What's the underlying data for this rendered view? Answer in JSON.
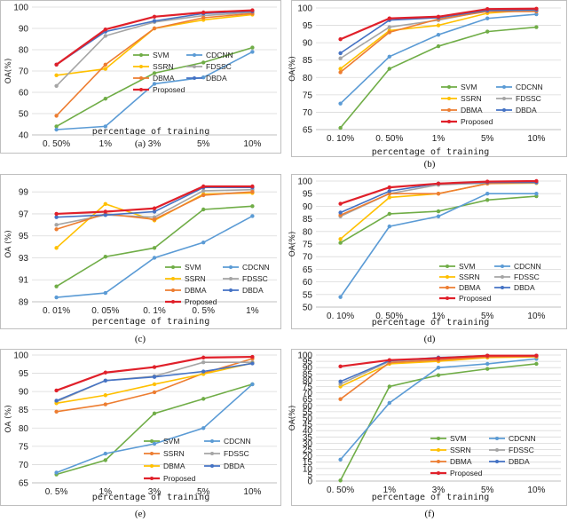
{
  "chart_data": [
    {
      "type": "line",
      "caption": "(a)",
      "xlabel": "percentage of training",
      "ylabel": "OA(%)",
      "categories": [
        "0. 50%",
        "1%",
        "3%",
        "5%",
        "10%"
      ],
      "yticks": [
        "40",
        "50",
        "60",
        "70",
        "80",
        "90",
        "100"
      ],
      "ylim": [
        40,
        100
      ],
      "series": [
        {
          "name": "SVM",
          "color": "#70ad47",
          "values": [
            44,
            57,
            69,
            74,
            81
          ]
        },
        {
          "name": "CDCNN",
          "color": "#5b9bd5",
          "values": [
            42.5,
            44,
            64,
            67,
            79
          ]
        },
        {
          "name": "SSRN",
          "color": "#ffc000",
          "values": [
            68,
            71,
            90,
            94,
            96.5
          ]
        },
        {
          "name": "FDSSC",
          "color": "#a5a5a5",
          "values": [
            63,
            86.5,
            93,
            96,
            97.5
          ]
        },
        {
          "name": "DBMA",
          "color": "#ed7d31",
          "values": [
            49,
            73,
            90,
            95,
            97
          ]
        },
        {
          "name": "DBDA",
          "color": "#4472c4",
          "values": [
            73,
            88.5,
            93.5,
            97,
            98
          ]
        },
        {
          "name": "Proposed",
          "color": "#e0202a",
          "values": [
            73,
            89.5,
            95.5,
            97.5,
            98.5
          ]
        }
      ]
    },
    {
      "type": "line",
      "caption": "(b)",
      "xlabel": "percentage of training",
      "ylabel": "OA(%)",
      "categories": [
        "0. 10%",
        "0. 50%",
        "1%",
        "5%",
        "10%"
      ],
      "yticks": [
        "65",
        "70",
        "75",
        "80",
        "85",
        "90",
        "95",
        "100"
      ],
      "ylim": [
        65,
        100
      ],
      "series": [
        {
          "name": "SVM",
          "color": "#70ad47",
          "values": [
            65.5,
            82.5,
            89,
            93.2,
            94.5
          ]
        },
        {
          "name": "CDCNN",
          "color": "#5b9bd5",
          "values": [
            72.5,
            86,
            92.3,
            97,
            98.2
          ]
        },
        {
          "name": "SSRN",
          "color": "#ffc000",
          "values": [
            82.5,
            93.5,
            95,
            98.5,
            99.5
          ]
        },
        {
          "name": "FDSSC",
          "color": "#a5a5a5",
          "values": [
            85.5,
            94.5,
            96.5,
            99.2,
            99.3
          ]
        },
        {
          "name": "DBMA",
          "color": "#ed7d31",
          "values": [
            81.5,
            93,
            96.8,
            99,
            99
          ]
        },
        {
          "name": "DBDA",
          "color": "#4472c4",
          "values": [
            87,
            96.5,
            97.2,
            99.3,
            99.4
          ]
        },
        {
          "name": "Proposed",
          "color": "#e0202a",
          "values": [
            91,
            97,
            97.5,
            99.7,
            99.8
          ]
        }
      ]
    },
    {
      "type": "line",
      "caption": "(c)",
      "xlabel": "percentage of training",
      "ylabel": "OA (%)",
      "categories": [
        "0. 01%",
        "0. 05%",
        "0. 1%",
        "0. 5%",
        "1%"
      ],
      "yticks": [
        "89",
        "91",
        "93",
        "95",
        "97",
        "99"
      ],
      "ylim": [
        89,
        99.5
      ],
      "series": [
        {
          "name": "SVM",
          "color": "#70ad47",
          "values": [
            90.4,
            93.1,
            93.9,
            97.4,
            97.7
          ]
        },
        {
          "name": "CDCNN",
          "color": "#5b9bd5",
          "values": [
            89.4,
            89.8,
            93,
            94.4,
            96.8
          ]
        },
        {
          "name": "SSRN",
          "color": "#ffc000",
          "values": [
            93.9,
            97.9,
            96.4,
            98.8,
            98.9
          ]
        },
        {
          "name": "FDSSC",
          "color": "#a5a5a5",
          "values": [
            96,
            96.9,
            96.7,
            99.1,
            99.2
          ]
        },
        {
          "name": "DBMA",
          "color": "#ed7d31",
          "values": [
            95.6,
            97,
            96.5,
            98.7,
            99
          ]
        },
        {
          "name": "DBDA",
          "color": "#4472c4",
          "values": [
            96.7,
            96.9,
            97.2,
            99.4,
            99.4
          ]
        },
        {
          "name": "Proposed",
          "color": "#e0202a",
          "values": [
            97,
            97.2,
            97.5,
            99.5,
            99.5
          ]
        }
      ]
    },
    {
      "type": "line",
      "caption": "(d)",
      "xlabel": "percentage of training",
      "ylabel": "OA(%)",
      "categories": [
        "0. 10%",
        "0. 50%",
        "1%",
        "5%",
        "10%"
      ],
      "yticks": [
        "50",
        "55",
        "60",
        "65",
        "70",
        "75",
        "80",
        "85",
        "90",
        "95",
        "100"
      ],
      "ylim": [
        50,
        100
      ],
      "series": [
        {
          "name": "SVM",
          "color": "#70ad47",
          "values": [
            75.5,
            87,
            88,
            92.5,
            94
          ]
        },
        {
          "name": "CDCNN",
          "color": "#5b9bd5",
          "values": [
            54,
            82,
            86,
            95,
            95
          ]
        },
        {
          "name": "SSRN",
          "color": "#ffc000",
          "values": [
            77,
            93.5,
            95,
            99,
            99.2
          ]
        },
        {
          "name": "FDSSC",
          "color": "#a5a5a5",
          "values": [
            86,
            95,
            98.5,
            99.2,
            99.3
          ]
        },
        {
          "name": "DBMA",
          "color": "#ed7d31",
          "values": [
            86.5,
            95,
            95,
            99,
            99.5
          ]
        },
        {
          "name": "DBDA",
          "color": "#4472c4",
          "values": [
            87.5,
            96,
            99,
            99.5,
            99.5
          ]
        },
        {
          "name": "Proposed",
          "color": "#e0202a",
          "values": [
            91,
            97.5,
            99,
            99.8,
            100
          ]
        }
      ]
    },
    {
      "type": "line",
      "caption": "(e)",
      "xlabel": "percentage of training",
      "ylabel": "OA (%)",
      "categories": [
        "0. 5%",
        "1%",
        "3%",
        "5%",
        "10%"
      ],
      "yticks": [
        "65",
        "70",
        "75",
        "80",
        "85",
        "90",
        "95",
        "100"
      ],
      "ylim": [
        65,
        100
      ],
      "series": [
        {
          "name": "SVM",
          "color": "#70ad47",
          "values": [
            67.3,
            71.2,
            84,
            88,
            92
          ]
        },
        {
          "name": "CDCNN",
          "color": "#5b9bd5",
          "values": [
            67.8,
            73,
            75.7,
            80,
            92
          ]
        },
        {
          "name": "SSRN",
          "color": "#ed7d31",
          "values": [
            84.5,
            86.5,
            89.8,
            95,
            99
          ]
        },
        {
          "name": "FDSSC",
          "color": "#a5a5a5",
          "values": [
            87.2,
            93,
            94.2,
            98,
            98
          ]
        },
        {
          "name": "DBMA",
          "color": "#ffc000",
          "values": [
            86.8,
            89,
            92,
            94.8,
            97.8
          ]
        },
        {
          "name": "DBDA",
          "color": "#4472c4",
          "values": [
            87.5,
            93,
            94,
            95.5,
            97.7
          ]
        },
        {
          "name": "Proposed",
          "color": "#e0202a",
          "values": [
            90.3,
            95.2,
            96.7,
            99.3,
            99.5
          ]
        }
      ]
    },
    {
      "type": "line",
      "caption": "(f)",
      "xlabel": "percentage of training",
      "ylabel": "OA(%)",
      "categories": [
        "0. 50%",
        "1%",
        "3%",
        "5%",
        "10%"
      ],
      "yticks": [
        "0",
        "5",
        "10",
        "15",
        "20",
        "25",
        "30",
        "35",
        "40",
        "45",
        "50",
        "55",
        "60",
        "65",
        "70",
        "75",
        "80",
        "85",
        "90",
        "95",
        "100"
      ],
      "ylim": [
        0,
        100
      ],
      "series": [
        {
          "name": "SVM",
          "color": "#70ad47",
          "values": [
            0.5,
            75,
            84,
            89,
            93
          ]
        },
        {
          "name": "CDCNN",
          "color": "#5b9bd5",
          "values": [
            17,
            62,
            90,
            93,
            97
          ]
        },
        {
          "name": "SSRN",
          "color": "#ffc000",
          "values": [
            75,
            93,
            95,
            98,
            98.5
          ]
        },
        {
          "name": "FDSSC",
          "color": "#a5a5a5",
          "values": [
            77,
            95,
            97,
            99,
            99
          ]
        },
        {
          "name": "DBMA",
          "color": "#ed7d31",
          "values": [
            65,
            94,
            96,
            98.5,
            99
          ]
        },
        {
          "name": "DBDA",
          "color": "#4472c4",
          "values": [
            79,
            95.5,
            98,
            99.5,
            99.5
          ]
        },
        {
          "name": "Proposed",
          "color": "#e0202a",
          "values": [
            91,
            96,
            97.5,
            99.5,
            99.5
          ]
        }
      ]
    }
  ]
}
